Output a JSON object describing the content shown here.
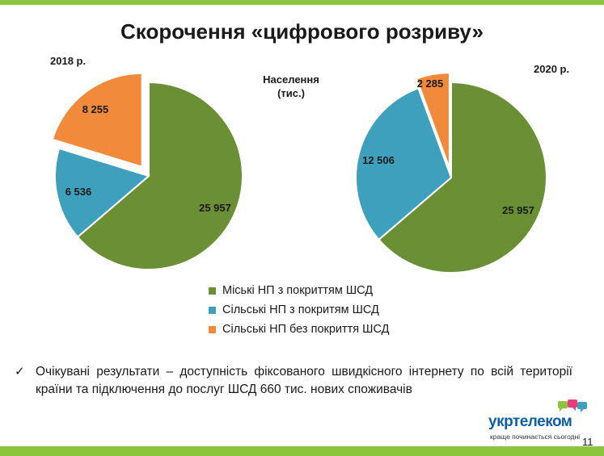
{
  "title": "Скорочення «цифрового розриву»",
  "unit_label": {
    "line1": "Населення",
    "line2": "(тис.)"
  },
  "chart_data": [
    {
      "type": "pie",
      "title": "2018 р.",
      "categories": [
        "Міські НП з покриттям ШСД",
        "Сільські НП з покритям ШСД",
        "Сільські НП без  покриття ШСД"
      ],
      "values": [
        25957,
        6536,
        8255
      ],
      "value_labels": [
        "25 957",
        "6 536",
        "8 255"
      ],
      "colors": [
        "#6a8f35",
        "#3fa0bd",
        "#f28a3c"
      ],
      "exploded": [
        false,
        false,
        true
      ]
    },
    {
      "type": "pie",
      "title": "2020 р.",
      "categories": [
        "Міські НП з покриттям ШСД",
        "Сільські НП з покритям ШСД",
        "Сільські НП без  покриття ШСД"
      ],
      "values": [
        25957,
        12506,
        2285
      ],
      "value_labels": [
        "25 957",
        "12 506",
        "2 285"
      ],
      "colors": [
        "#6a8f35",
        "#3fa0bd",
        "#f28a3c"
      ],
      "exploded": [
        false,
        false,
        true
      ]
    }
  ],
  "legend": [
    {
      "label": "Міські НП з покриттям ШСД",
      "color": "#6a8f35",
      "emphasis": false
    },
    {
      "label": "Сільські НП з покритям ШСД",
      "color": "#3fa0bd",
      "emphasis": false
    },
    {
      "label": "Сільські НП без  покриття ШСД",
      "color": "#f28a3c",
      "emphasis": true
    }
  ],
  "note": {
    "check_icon": "✓",
    "text": "Очікувані результати – доступність фіксованого швидкісного інтернету по всій території країни та підключення до послуг ШСД 660 тис. нових споживачів"
  },
  "logo": {
    "name": "укртелеком",
    "tagline": "краще починається сьогодні",
    "bubble_colors": [
      "#8cc43f",
      "#e53e7a",
      "#3fa0bd"
    ]
  },
  "page_number": "11"
}
